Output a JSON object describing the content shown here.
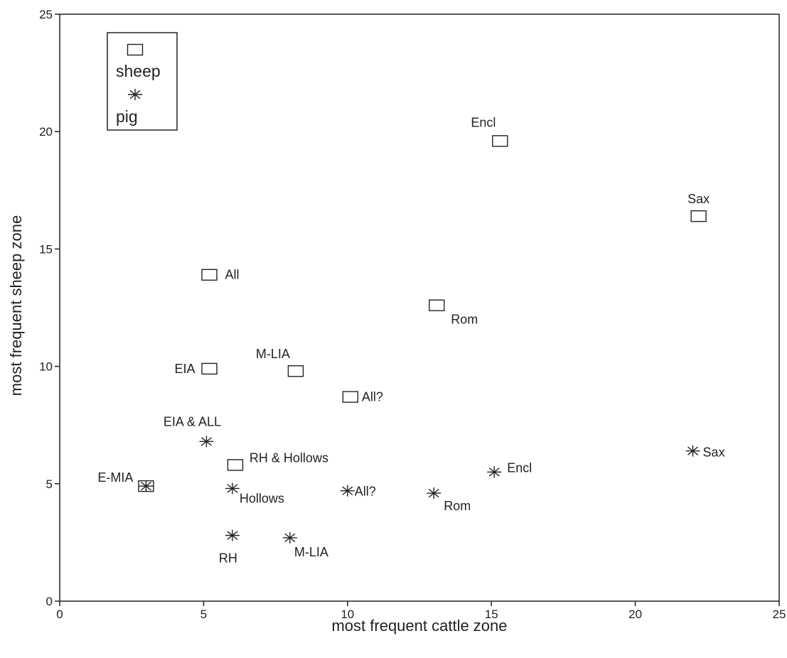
{
  "chart_data": {
    "type": "scatter",
    "xlabel": "most frequent cattle zone",
    "ylabel": "most frequent sheep zone",
    "xlim": [
      0,
      25
    ],
    "ylim": [
      0,
      25
    ],
    "xticks": [
      "0",
      "5",
      "10",
      "15",
      "20",
      "25"
    ],
    "yticks": [
      "0",
      "5",
      "10",
      "15",
      "20",
      "25"
    ],
    "grid": false,
    "legend": {
      "placement": "top-left",
      "entries": [
        {
          "label": "sheep",
          "marker": "square"
        },
        {
          "label": "pig",
          "marker": "asterisk"
        }
      ]
    },
    "series": [
      {
        "name": "sheep",
        "marker": "square",
        "points": [
          {
            "x": 5.2,
            "y": 13.9,
            "label": "All"
          },
          {
            "x": 5.2,
            "y": 9.9,
            "label": "EIA"
          },
          {
            "x": 8.2,
            "y": 9.8,
            "label": "M-LIA"
          },
          {
            "x": 10.1,
            "y": 8.7,
            "label": "All?"
          },
          {
            "x": 13.1,
            "y": 12.6,
            "label": "Rom"
          },
          {
            "x": 15.3,
            "y": 19.6,
            "label": "Encl"
          },
          {
            "x": 22.2,
            "y": 16.4,
            "label": "Sax"
          },
          {
            "x": 6.1,
            "y": 5.8,
            "label": "RH & Hollows"
          },
          {
            "x": 3.0,
            "y": 4.9,
            "label": "E-MIA"
          }
        ]
      },
      {
        "name": "pig",
        "marker": "asterisk",
        "points": [
          {
            "x": 5.1,
            "y": 6.8,
            "label": "EIA & ALL"
          },
          {
            "x": 6.0,
            "y": 4.8,
            "label": "Hollows"
          },
          {
            "x": 6.0,
            "y": 2.8,
            "label": "RH"
          },
          {
            "x": 8.0,
            "y": 2.7,
            "label": "M-LIA"
          },
          {
            "x": 10.0,
            "y": 4.7,
            "label": "All?"
          },
          {
            "x": 13.0,
            "y": 4.6,
            "label": "Rom"
          },
          {
            "x": 15.1,
            "y": 5.5,
            "label": "Encl"
          },
          {
            "x": 22.0,
            "y": 6.4,
            "label": "Sax"
          },
          {
            "x": 3.0,
            "y": 4.9,
            "label": ""
          }
        ]
      }
    ]
  }
}
